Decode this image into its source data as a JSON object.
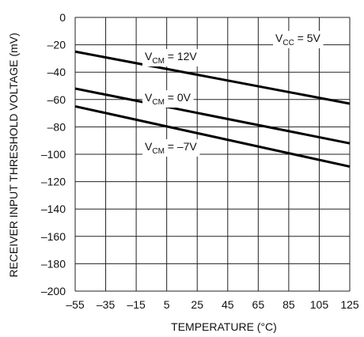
{
  "chart_data": {
    "type": "line",
    "xlabel": "TEMPERATURE (°C)",
    "ylabel": "RECEIVER INPUT THRESHOLD VOLTAGE (mV)",
    "xlim": [
      -55,
      125
    ],
    "ylim": [
      -200,
      0
    ],
    "x_ticks": [
      -55,
      -35,
      -15,
      5,
      25,
      45,
      65,
      85,
      105,
      125
    ],
    "y_ticks": [
      0,
      -20,
      -40,
      -60,
      -80,
      -100,
      -120,
      -140,
      -160,
      -180,
      -200
    ],
    "x_tick_labels": [
      "–55",
      "–35",
      "–15",
      "5",
      "25",
      "45",
      "65",
      "85",
      "105",
      "125"
    ],
    "y_tick_labels": [
      "0",
      "–20",
      "–40",
      "–60",
      "–80",
      "–100",
      "–120",
      "–140",
      "–160",
      "–180",
      "–200"
    ],
    "grid": true,
    "annotation": {
      "main": "V",
      "sub": "CC",
      "suffix": " = 5V"
    },
    "series": [
      {
        "name": "V_CM = 12V",
        "label_main": "V",
        "label_sub": "CM",
        "label_suffix": " = 12V",
        "x": [
          -55,
          125
        ],
        "values": [
          -25,
          -63
        ]
      },
      {
        "name": "V_CM = 0V",
        "label_main": "V",
        "label_sub": "CM",
        "label_suffix": " = 0V",
        "x": [
          -55,
          125
        ],
        "values": [
          -52,
          -92
        ]
      },
      {
        "name": "V_CM = –7V",
        "label_main": "V",
        "label_sub": "CM",
        "label_suffix": " = –7V",
        "x": [
          -55,
          125
        ],
        "values": [
          -65,
          -109
        ]
      }
    ]
  }
}
